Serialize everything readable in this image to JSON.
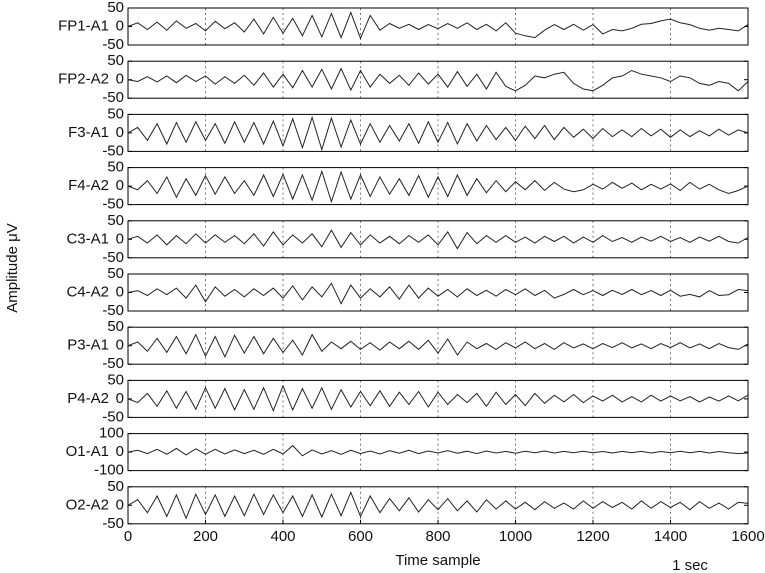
{
  "ylabel": "Amplitude μV",
  "xlabel": "Time sample",
  "annotation": "1 sec",
  "chart_data": [
    {
      "type": "line",
      "label": "FP1-A1",
      "color": "#222222",
      "xlim": [
        0,
        1600
      ],
      "ylim": [
        -50,
        50
      ],
      "yticks": [
        -50,
        0,
        50
      ],
      "grid": true,
      "x": [
        0,
        25,
        50,
        75,
        100,
        125,
        150,
        175,
        200,
        225,
        250,
        275,
        300,
        325,
        350,
        375,
        400,
        425,
        450,
        475,
        500,
        525,
        550,
        575,
        600,
        625,
        650,
        675,
        700,
        725,
        750,
        775,
        800,
        825,
        850,
        875,
        900,
        925,
        950,
        975,
        1000,
        1025,
        1050,
        1075,
        1100,
        1125,
        1150,
        1175,
        1200,
        1225,
        1250,
        1275,
        1300,
        1325,
        1350,
        1375,
        1400,
        1425,
        1450,
        1475,
        1500,
        1525,
        1550,
        1575,
        1600
      ],
      "values": [
        0,
        10,
        -8,
        12,
        -10,
        15,
        -5,
        8,
        -12,
        14,
        -6,
        10,
        -15,
        20,
        -20,
        25,
        -18,
        22,
        -25,
        30,
        -28,
        35,
        -30,
        38,
        -32,
        30,
        -10,
        8,
        -5,
        6,
        -8,
        5,
        -6,
        8,
        -5,
        10,
        -8,
        6,
        -12,
        10,
        -18,
        -25,
        -30,
        -10,
        5,
        -8,
        6,
        -10,
        5,
        -20,
        -8,
        -12,
        -5,
        6,
        8,
        15,
        20,
        10,
        5,
        -5,
        -10,
        -5,
        -8,
        -12,
        5
      ]
    },
    {
      "type": "line",
      "label": "FP2-A2",
      "color": "#222222",
      "xlim": [
        0,
        1600
      ],
      "ylim": [
        -50,
        50
      ],
      "yticks": [
        -50,
        0,
        50
      ],
      "grid": true,
      "x": [
        0,
        25,
        50,
        75,
        100,
        125,
        150,
        175,
        200,
        225,
        250,
        275,
        300,
        325,
        350,
        375,
        400,
        425,
        450,
        475,
        500,
        525,
        550,
        575,
        600,
        625,
        650,
        675,
        700,
        725,
        750,
        775,
        800,
        825,
        850,
        875,
        900,
        925,
        950,
        975,
        1000,
        1025,
        1050,
        1075,
        1100,
        1125,
        1150,
        1175,
        1200,
        1225,
        1250,
        1275,
        1300,
        1325,
        1350,
        1375,
        1400,
        1425,
        1450,
        1475,
        1500,
        1525,
        1550,
        1575,
        1600
      ],
      "values": [
        0,
        -5,
        8,
        -6,
        10,
        -8,
        12,
        -5,
        10,
        -12,
        8,
        -10,
        12,
        -15,
        18,
        -20,
        15,
        -22,
        25,
        -20,
        28,
        -25,
        30,
        -28,
        25,
        -20,
        15,
        -10,
        12,
        -15,
        18,
        -12,
        15,
        -20,
        22,
        -18,
        15,
        -25,
        20,
        -18,
        -30,
        -15,
        10,
        5,
        15,
        20,
        -10,
        -25,
        -30,
        -15,
        5,
        10,
        25,
        15,
        10,
        5,
        -5,
        10,
        5,
        -10,
        -15,
        -5,
        -10,
        -30,
        -5
      ]
    },
    {
      "type": "line",
      "label": "F3-A1",
      "color": "#222222",
      "xlim": [
        0,
        1600
      ],
      "ylim": [
        -50,
        50
      ],
      "yticks": [
        -50,
        0,
        50
      ],
      "grid": true,
      "x": [
        0,
        25,
        50,
        75,
        100,
        125,
        150,
        175,
        200,
        225,
        250,
        275,
        300,
        325,
        350,
        375,
        400,
        425,
        450,
        475,
        500,
        525,
        550,
        575,
        600,
        625,
        650,
        675,
        700,
        725,
        750,
        775,
        800,
        825,
        850,
        875,
        900,
        925,
        950,
        975,
        1000,
        1025,
        1050,
        1075,
        1100,
        1125,
        1150,
        1175,
        1200,
        1225,
        1250,
        1275,
        1300,
        1325,
        1350,
        1375,
        1400,
        1425,
        1450,
        1475,
        1500,
        1525,
        1550,
        1575,
        1600
      ],
      "values": [
        0,
        15,
        -20,
        25,
        -30,
        28,
        -25,
        30,
        -20,
        25,
        -28,
        30,
        -25,
        28,
        -30,
        32,
        -35,
        38,
        -40,
        42,
        -45,
        40,
        -38,
        35,
        -30,
        25,
        -25,
        20,
        -22,
        25,
        -28,
        30,
        -25,
        28,
        -30,
        25,
        -22,
        20,
        -18,
        15,
        -20,
        18,
        -15,
        20,
        -18,
        15,
        -12,
        10,
        -15,
        12,
        -10,
        8,
        -10,
        12,
        -8,
        10,
        -12,
        8,
        -10,
        6,
        -8,
        10,
        -6,
        8,
        0
      ]
    },
    {
      "type": "line",
      "label": "F4-A2",
      "color": "#222222",
      "xlim": [
        0,
        1600
      ],
      "ylim": [
        -50,
        50
      ],
      "yticks": [
        -50,
        0,
        50
      ],
      "grid": true,
      "x": [
        0,
        25,
        50,
        75,
        100,
        125,
        150,
        175,
        200,
        225,
        250,
        275,
        300,
        325,
        350,
        375,
        400,
        425,
        450,
        475,
        500,
        525,
        550,
        575,
        600,
        625,
        650,
        675,
        700,
        725,
        750,
        775,
        800,
        825,
        850,
        875,
        900,
        925,
        950,
        975,
        1000,
        1025,
        1050,
        1075,
        1100,
        1125,
        1150,
        1175,
        1200,
        1225,
        1250,
        1275,
        1300,
        1325,
        1350,
        1375,
        1400,
        1425,
        1450,
        1475,
        1500,
        1525,
        1550,
        1575,
        1600
      ],
      "values": [
        0,
        -10,
        15,
        -20,
        25,
        -30,
        20,
        -25,
        28,
        -22,
        25,
        -20,
        15,
        -25,
        30,
        -28,
        32,
        -35,
        30,
        -38,
        40,
        -42,
        38,
        -35,
        30,
        -28,
        25,
        -22,
        20,
        -25,
        28,
        -30,
        25,
        -28,
        30,
        -25,
        20,
        -18,
        15,
        -15,
        12,
        -10,
        15,
        -12,
        10,
        -8,
        -15,
        -10,
        5,
        -8,
        10,
        -6,
        8,
        -10,
        5,
        -8,
        6,
        -12,
        10,
        -8,
        5,
        -10,
        -20,
        -12,
        0
      ]
    },
    {
      "type": "line",
      "label": "C3-A1",
      "color": "#222222",
      "xlim": [
        0,
        1600
      ],
      "ylim": [
        -50,
        50
      ],
      "yticks": [
        -50,
        0,
        50
      ],
      "grid": true,
      "x": [
        0,
        25,
        50,
        75,
        100,
        125,
        150,
        175,
        200,
        225,
        250,
        275,
        300,
        325,
        350,
        375,
        400,
        425,
        450,
        475,
        500,
        525,
        550,
        575,
        600,
        625,
        650,
        675,
        700,
        725,
        750,
        775,
        800,
        825,
        850,
        875,
        900,
        925,
        950,
        975,
        1000,
        1025,
        1050,
        1075,
        1100,
        1125,
        1150,
        1175,
        1200,
        1225,
        1250,
        1275,
        1300,
        1325,
        1350,
        1375,
        1400,
        1425,
        1450,
        1475,
        1500,
        1525,
        1550,
        1575,
        1600
      ],
      "values": [
        0,
        8,
        -10,
        12,
        -15,
        10,
        -12,
        15,
        -10,
        12,
        -8,
        10,
        -12,
        15,
        -18,
        20,
        -15,
        12,
        -10,
        15,
        -20,
        25,
        -22,
        18,
        -15,
        12,
        -10,
        8,
        -12,
        10,
        -8,
        12,
        -15,
        20,
        -25,
        18,
        -12,
        10,
        -8,
        10,
        -8,
        6,
        -10,
        8,
        -6,
        8,
        -10,
        6,
        -8,
        10,
        -6,
        5,
        -8,
        6,
        -5,
        8,
        -6,
        5,
        -8,
        6,
        -5,
        8,
        -6,
        -10,
        5
      ]
    },
    {
      "type": "line",
      "label": "C4-A2",
      "color": "#222222",
      "xlim": [
        0,
        1600
      ],
      "ylim": [
        -50,
        50
      ],
      "yticks": [
        -50,
        0,
        50
      ],
      "grid": true,
      "x": [
        0,
        25,
        50,
        75,
        100,
        125,
        150,
        175,
        200,
        225,
        250,
        275,
        300,
        325,
        350,
        375,
        400,
        425,
        450,
        475,
        500,
        525,
        550,
        575,
        600,
        625,
        650,
        675,
        700,
        725,
        750,
        775,
        800,
        825,
        850,
        875,
        900,
        925,
        950,
        975,
        1000,
        1025,
        1050,
        1075,
        1100,
        1125,
        1150,
        1175,
        1200,
        1225,
        1250,
        1275,
        1300,
        1325,
        1350,
        1375,
        1400,
        1425,
        1450,
        1475,
        1500,
        1525,
        1550,
        1575,
        1600
      ],
      "values": [
        0,
        5,
        -8,
        10,
        -6,
        12,
        -15,
        20,
        -25,
        15,
        -10,
        8,
        -12,
        10,
        -8,
        12,
        -15,
        18,
        -20,
        15,
        -12,
        25,
        -30,
        20,
        -15,
        10,
        -12,
        15,
        -18,
        20,
        -15,
        12,
        -10,
        8,
        -12,
        10,
        -8,
        6,
        -10,
        8,
        -6,
        10,
        -8,
        6,
        -15,
        -5,
        8,
        -6,
        5,
        -8,
        6,
        -5,
        8,
        -6,
        5,
        -8,
        6,
        -10,
        -5,
        -12,
        5,
        -8,
        -6,
        8,
        5
      ]
    },
    {
      "type": "line",
      "label": "P3-A1",
      "color": "#222222",
      "xlim": [
        0,
        1600
      ],
      "ylim": [
        -50,
        50
      ],
      "yticks": [
        -50,
        0,
        50
      ],
      "grid": true,
      "x": [
        0,
        25,
        50,
        75,
        100,
        125,
        150,
        175,
        200,
        225,
        250,
        275,
        300,
        325,
        350,
        375,
        400,
        425,
        450,
        475,
        500,
        525,
        550,
        575,
        600,
        625,
        650,
        675,
        700,
        725,
        750,
        775,
        800,
        825,
        850,
        875,
        900,
        925,
        950,
        975,
        1000,
        1025,
        1050,
        1075,
        1100,
        1125,
        1150,
        1175,
        1200,
        1225,
        1250,
        1275,
        1300,
        1325,
        1350,
        1375,
        1400,
        1425,
        1450,
        1475,
        1500,
        1525,
        1550,
        1575,
        1600
      ],
      "values": [
        0,
        10,
        -15,
        20,
        -18,
        25,
        -22,
        30,
        -28,
        25,
        -30,
        28,
        -20,
        25,
        -22,
        20,
        -18,
        15,
        -25,
        30,
        -15,
        10,
        -8,
        12,
        -10,
        8,
        -12,
        10,
        -8,
        12,
        -10,
        15,
        -20,
        18,
        -25,
        10,
        -8,
        6,
        -10,
        8,
        -6,
        10,
        -8,
        6,
        -10,
        8,
        -6,
        5,
        -8,
        6,
        -5,
        8,
        -6,
        5,
        -8,
        6,
        -5,
        8,
        -6,
        5,
        -8,
        6,
        -5,
        -10,
        5
      ]
    },
    {
      "type": "line",
      "label": "P4-A2",
      "color": "#222222",
      "xlim": [
        0,
        1600
      ],
      "ylim": [
        -50,
        50
      ],
      "yticks": [
        -50,
        0,
        50
      ],
      "grid": true,
      "x": [
        0,
        25,
        50,
        75,
        100,
        125,
        150,
        175,
        200,
        225,
        250,
        275,
        300,
        325,
        350,
        375,
        400,
        425,
        450,
        475,
        500,
        525,
        550,
        575,
        600,
        625,
        650,
        675,
        700,
        725,
        750,
        775,
        800,
        825,
        850,
        875,
        900,
        925,
        950,
        975,
        1000,
        1025,
        1050,
        1075,
        1100,
        1125,
        1150,
        1175,
        1200,
        1225,
        1250,
        1275,
        1300,
        1325,
        1350,
        1375,
        1400,
        1425,
        1450,
        1475,
        1500,
        1525,
        1550,
        1575,
        1600
      ],
      "values": [
        0,
        -10,
        15,
        -20,
        22,
        -25,
        20,
        -28,
        30,
        -25,
        28,
        -30,
        25,
        -28,
        30,
        -32,
        35,
        -30,
        28,
        -25,
        30,
        -28,
        25,
        -22,
        20,
        -18,
        22,
        -20,
        18,
        -15,
        20,
        -22,
        18,
        -15,
        12,
        -10,
        15,
        -20,
        18,
        -15,
        12,
        -18,
        15,
        -12,
        10,
        -8,
        12,
        -10,
        8,
        -6,
        10,
        -8,
        6,
        -8,
        10,
        -6,
        8,
        -5,
        6,
        -8,
        5,
        -6,
        8,
        -5,
        10
      ]
    },
    {
      "type": "line",
      "label": "O1-A1",
      "color": "#222222",
      "xlim": [
        0,
        1600
      ],
      "ylim": [
        -100,
        100
      ],
      "yticks": [
        -100,
        0,
        100
      ],
      "grid": true,
      "x": [
        0,
        25,
        50,
        75,
        100,
        125,
        150,
        175,
        200,
        225,
        250,
        275,
        300,
        325,
        350,
        375,
        400,
        425,
        450,
        475,
        500,
        525,
        550,
        575,
        600,
        625,
        650,
        675,
        700,
        725,
        750,
        775,
        800,
        825,
        850,
        875,
        900,
        925,
        950,
        975,
        1000,
        1025,
        1050,
        1075,
        1100,
        1125,
        1150,
        1175,
        1200,
        1225,
        1250,
        1275,
        1300,
        1325,
        1350,
        1375,
        1400,
        1425,
        1450,
        1475,
        1500,
        1525,
        1550,
        1575,
        1600
      ],
      "values": [
        0,
        10,
        -8,
        15,
        -12,
        20,
        -15,
        18,
        -12,
        15,
        -10,
        12,
        -8,
        10,
        -12,
        15,
        -10,
        35,
        -20,
        12,
        -10,
        8,
        -12,
        10,
        -8,
        6,
        -10,
        8,
        -6,
        10,
        -8,
        6,
        -5,
        8,
        -6,
        5,
        -8,
        6,
        -5,
        4,
        -6,
        5,
        -4,
        6,
        -5,
        4,
        -3,
        5,
        -4,
        3,
        -5,
        4,
        -3,
        4,
        -5,
        3,
        -4,
        5,
        -3,
        4,
        -5,
        3,
        -4,
        -8,
        -5
      ]
    },
    {
      "type": "line",
      "label": "O2-A2",
      "color": "#222222",
      "xlim": [
        0,
        1600
      ],
      "ylim": [
        -50,
        50
      ],
      "yticks": [
        -50,
        0,
        50
      ],
      "grid": true,
      "xticks": [
        0,
        200,
        400,
        600,
        800,
        1000,
        1200,
        1400,
        1600
      ],
      "x": [
        0,
        25,
        50,
        75,
        100,
        125,
        150,
        175,
        200,
        225,
        250,
        275,
        300,
        325,
        350,
        375,
        400,
        425,
        450,
        475,
        500,
        525,
        550,
        575,
        600,
        625,
        650,
        675,
        700,
        725,
        750,
        775,
        800,
        825,
        850,
        875,
        900,
        925,
        950,
        975,
        1000,
        1025,
        1050,
        1075,
        1100,
        1125,
        1150,
        1175,
        1200,
        1225,
        1250,
        1275,
        1300,
        1325,
        1350,
        1375,
        1400,
        1425,
        1450,
        1475,
        1500,
        1525,
        1550,
        1575,
        1600
      ],
      "values": [
        0,
        15,
        -20,
        25,
        -30,
        28,
        -35,
        30,
        -25,
        28,
        -30,
        25,
        -28,
        30,
        -25,
        28,
        -20,
        25,
        -30,
        28,
        -32,
        30,
        -28,
        35,
        -30,
        25,
        -20,
        18,
        -15,
        20,
        -18,
        15,
        -12,
        18,
        -15,
        12,
        -18,
        15,
        -10,
        12,
        -10,
        8,
        -12,
        10,
        -8,
        6,
        -10,
        12,
        -8,
        10,
        -6,
        8,
        -10,
        12,
        -8,
        10,
        -6,
        8,
        -12,
        10,
        -8,
        6,
        -10,
        8,
        5
      ]
    }
  ]
}
